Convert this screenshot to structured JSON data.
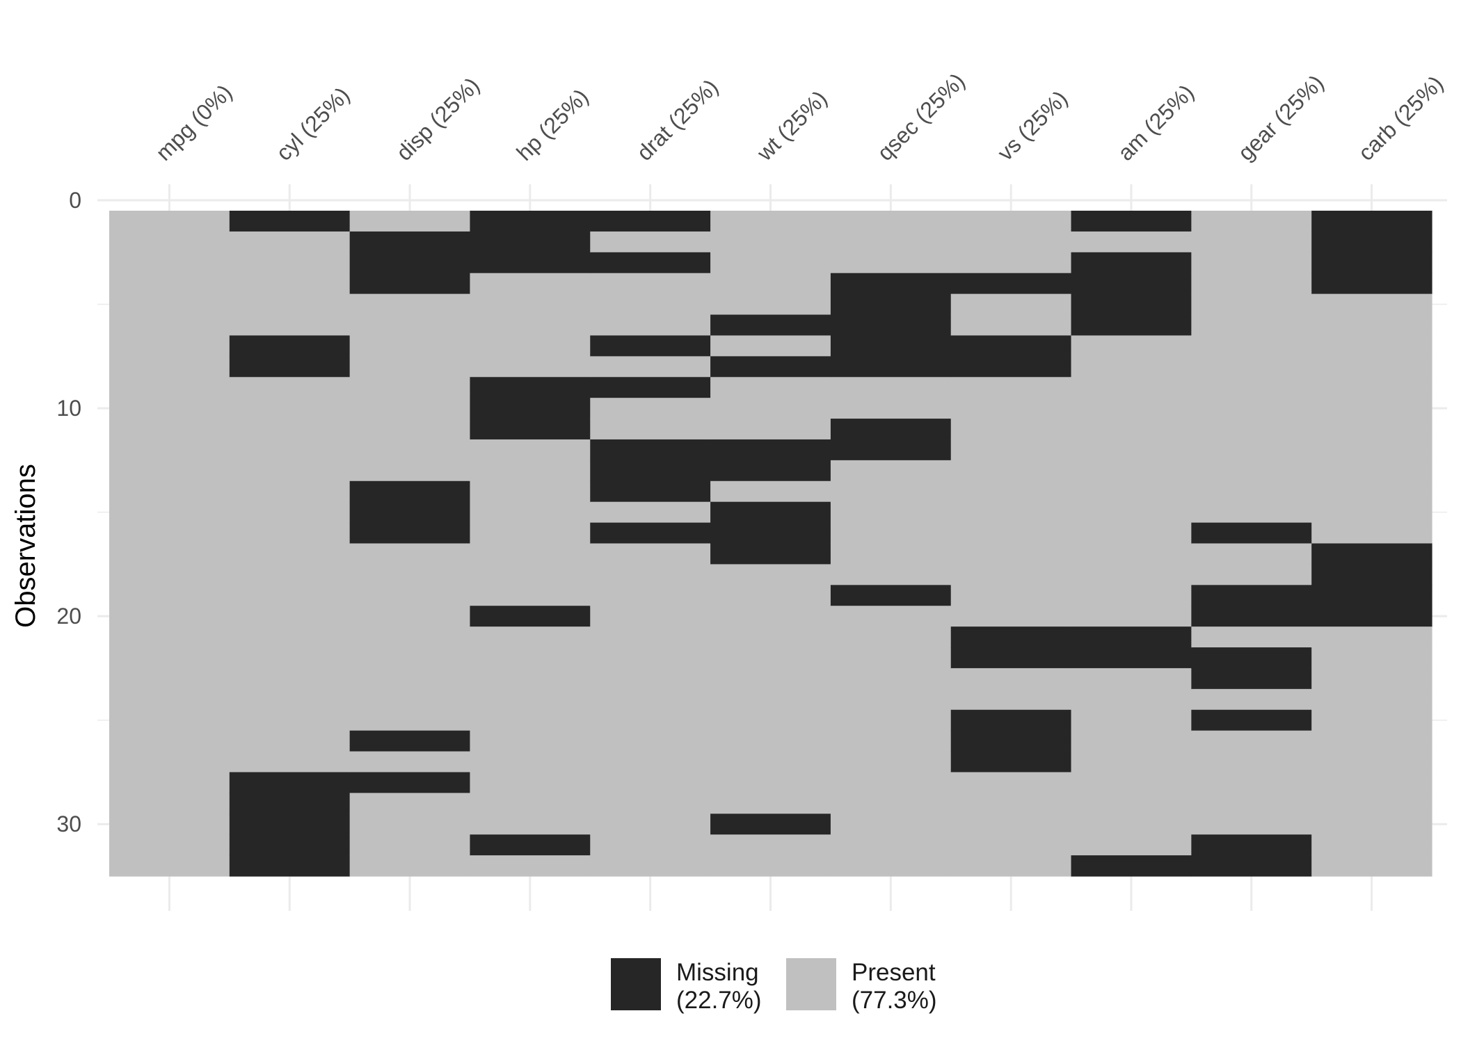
{
  "chart_data": {
    "type": "heatmap",
    "title": "",
    "xlabel": "",
    "ylabel": "Observations",
    "columns": [
      "mpg (0%)",
      "cyl (25%)",
      "disp (25%)",
      "hp (25%)",
      "drat (25%)",
      "wt (25%)",
      "qsec (25%)",
      "vs (25%)",
      "am (25%)",
      "gear (25%)",
      "carb (25%)"
    ],
    "n_rows": 32,
    "ylim": [
      0,
      32
    ],
    "y_ticks": [
      0,
      10,
      20,
      30
    ],
    "missing_cells": {
      "mpg (0%)": [],
      "cyl (25%)": [
        1,
        7,
        8,
        28,
        29,
        30,
        31,
        32
      ],
      "disp (25%)": [
        2,
        3,
        4,
        14,
        15,
        16,
        26,
        28
      ],
      "hp (25%)": [
        1,
        2,
        3,
        9,
        10,
        11,
        20,
        31
      ],
      "drat (25%)": [
        1,
        3,
        7,
        9,
        12,
        13,
        14,
        16
      ],
      "wt (25%)": [
        6,
        8,
        12,
        13,
        15,
        16,
        17,
        30
      ],
      "qsec (25%)": [
        4,
        5,
        6,
        7,
        8,
        11,
        12,
        19
      ],
      "vs (25%)": [
        4,
        7,
        8,
        21,
        22,
        25,
        26,
        27
      ],
      "am (25%)": [
        1,
        3,
        4,
        5,
        6,
        21,
        22,
        32
      ],
      "gear (25%)": [
        16,
        19,
        20,
        22,
        23,
        25,
        31,
        32
      ],
      "carb (25%)": [
        1,
        2,
        3,
        4,
        17,
        18,
        19,
        20
      ]
    },
    "legend": {
      "position": "bottom",
      "items": [
        {
          "label_line1": "Missing",
          "label_line2": "(22.7%)",
          "color": "#262626"
        },
        {
          "label_line1": "Present",
          "label_line2": "(77.3%)",
          "color": "#c0c0c0"
        }
      ]
    },
    "colors": {
      "missing": "#262626",
      "present": "#c0c0c0",
      "grid": "#ebebeb",
      "background": "#ffffff"
    },
    "grid": true
  }
}
